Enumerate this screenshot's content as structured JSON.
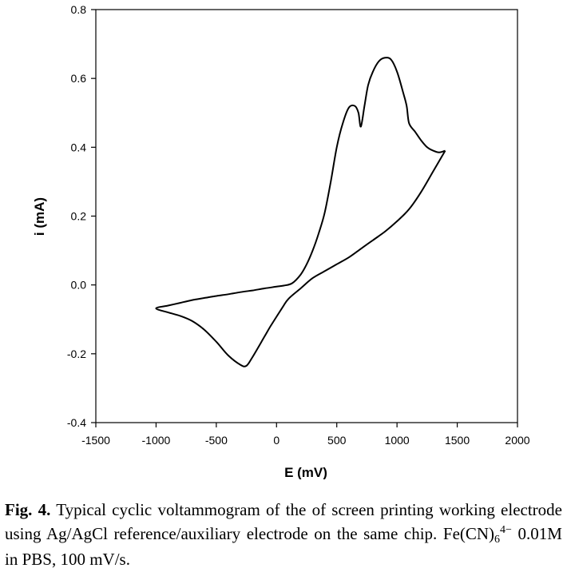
{
  "chart_data": {
    "type": "line",
    "title": "",
    "xlabel": "E (mV)",
    "ylabel": "i (mA)",
    "xlim": [
      -1500,
      2000
    ],
    "ylim": [
      -0.4,
      0.8
    ],
    "xticks": [
      -1500,
      -1000,
      -500,
      0,
      500,
      1000,
      1500,
      2000
    ],
    "yticks": [
      -0.4,
      -0.2,
      0.0,
      0.2,
      0.4,
      0.6,
      0.8
    ],
    "xtick_labels": [
      "-1500",
      "-1000",
      "-500",
      "0",
      "500",
      "1000",
      "1500",
      "2000"
    ],
    "ytick_labels": [
      "-0.4",
      "-0.2",
      "0.0",
      "0.2",
      "0.4",
      "0.6",
      "0.8"
    ],
    "grid": false,
    "series": [
      {
        "name": "cyclic voltammogram",
        "x": [
          1400,
          1300,
          1200,
          1100,
          1000,
          900,
          800,
          700,
          600,
          500,
          400,
          300,
          200,
          100,
          50,
          -50,
          -100,
          -200,
          -250,
          -300,
          -400,
          -500,
          -600,
          -700,
          -800,
          -900,
          -1000,
          -900,
          -800,
          -700,
          -600,
          -500,
          -400,
          -300,
          -200,
          -100,
          0,
          60,
          130,
          200,
          250,
          300,
          350,
          400,
          450,
          500,
          550,
          600,
          650,
          680,
          700,
          730,
          760,
          800,
          850,
          900,
          950,
          1000,
          1050,
          1080,
          1100,
          1150,
          1200,
          1250,
          1300,
          1350,
          1400
        ],
        "y": [
          0.39,
          0.33,
          0.27,
          0.22,
          0.185,
          0.155,
          0.13,
          0.105,
          0.08,
          0.06,
          0.04,
          0.02,
          -0.01,
          -0.04,
          -0.065,
          -0.12,
          -0.15,
          -0.21,
          -0.235,
          -0.232,
          -0.205,
          -0.165,
          -0.13,
          -0.105,
          -0.09,
          -0.08,
          -0.068,
          -0.06,
          -0.052,
          -0.044,
          -0.038,
          -0.032,
          -0.027,
          -0.021,
          -0.016,
          -0.01,
          -0.005,
          -0.002,
          0.005,
          0.03,
          0.06,
          0.1,
          0.15,
          0.21,
          0.3,
          0.4,
          0.47,
          0.515,
          0.52,
          0.5,
          0.46,
          0.52,
          0.58,
          0.62,
          0.65,
          0.66,
          0.655,
          0.62,
          0.56,
          0.52,
          0.47,
          0.445,
          0.42,
          0.4,
          0.39,
          0.385,
          0.39
        ]
      }
    ]
  },
  "caption": {
    "label": "Fig. 4.",
    "text1": " Typical cyclic voltammogram of the of screen printing working electrode using Ag/AgCl reference/auxiliary electrode on the same chip. Fe(CN)",
    "subscript": "6",
    "superscript": "4−",
    "text2": " 0.01M in PBS, 100 mV/s."
  }
}
